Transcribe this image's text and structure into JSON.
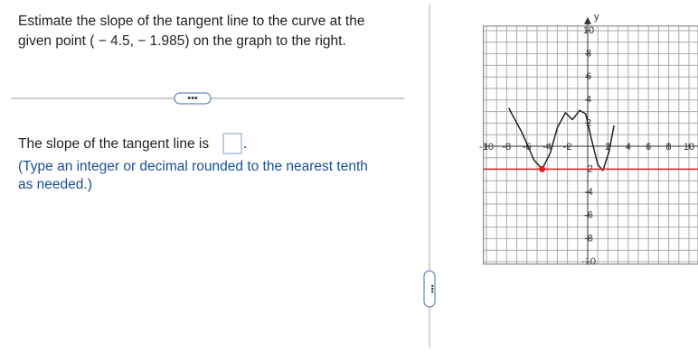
{
  "question": {
    "line1": "Estimate the slope of the tangent line to the curve at the",
    "line2": "given point ( − 4.5, − 1.985) on the graph to the right."
  },
  "answer": {
    "prompt": "The slope of the tangent line is",
    "period": ".",
    "hint1": "(Type an integer or decimal rounded to the nearest tenth",
    "hint2": "as needed.)"
  },
  "graph": {
    "axis_label": "y",
    "xlim": [
      -10.3,
      10.9
    ],
    "ylim": [
      -10.2,
      10.4
    ],
    "xticks": [
      -10,
      -8,
      -6,
      -4,
      -2,
      2,
      4,
      6,
      8,
      10
    ],
    "yticks": [
      10,
      8,
      6,
      4,
      2,
      -2,
      -4,
      -6,
      -8,
      -10
    ]
  }
}
